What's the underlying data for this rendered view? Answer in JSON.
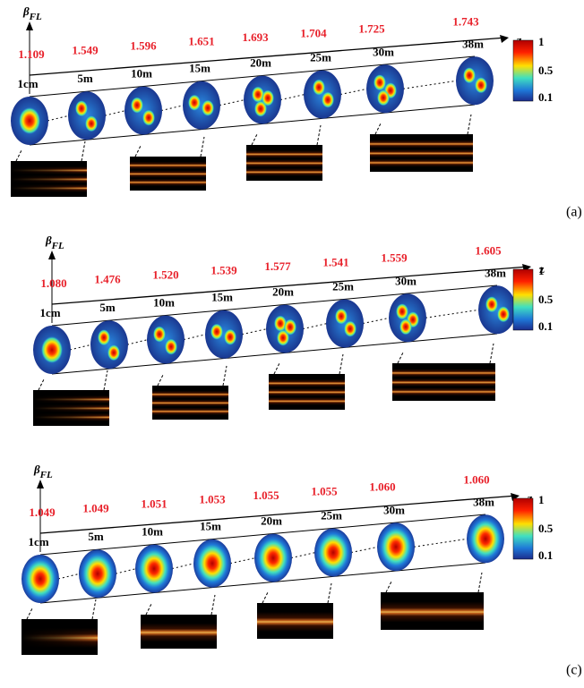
{
  "beta_label": "β",
  "beta_sub": "FL",
  "z_label": "z",
  "panels": [
    {
      "label": "(a)",
      "beta": [
        "1.109",
        "1.549",
        "1.596",
        "1.651",
        "1.693",
        "1.704",
        "1.725",
        "1.743"
      ],
      "positions": [
        "1cm",
        "5m",
        "10m",
        "15m",
        "20m",
        "25m",
        "30m",
        "38m"
      ],
      "colorbar": [
        "1",
        "0.5",
        "0.1"
      ]
    },
    {
      "beta": [
        "1.080",
        "1.476",
        "1.520",
        "1.539",
        "1.577",
        "1.541",
        "1.559",
        "1.605"
      ],
      "positions": [
        "1cm",
        "5m",
        "10m",
        "15m",
        "20m",
        "25m",
        "30m",
        "38m"
      ],
      "colorbar": [
        "1",
        "0.5",
        "0.1"
      ]
    },
    {
      "label": "(c)",
      "beta": [
        "1.049",
        "1.049",
        "1.051",
        "1.053",
        "1.055",
        "1.055",
        "1.060",
        "1.060"
      ],
      "positions": [
        "1cm",
        "5m",
        "10m",
        "15m",
        "20m",
        "25m",
        "30m",
        "38m"
      ],
      "colorbar": [
        "1",
        "0.5",
        "0.1"
      ]
    }
  ]
}
